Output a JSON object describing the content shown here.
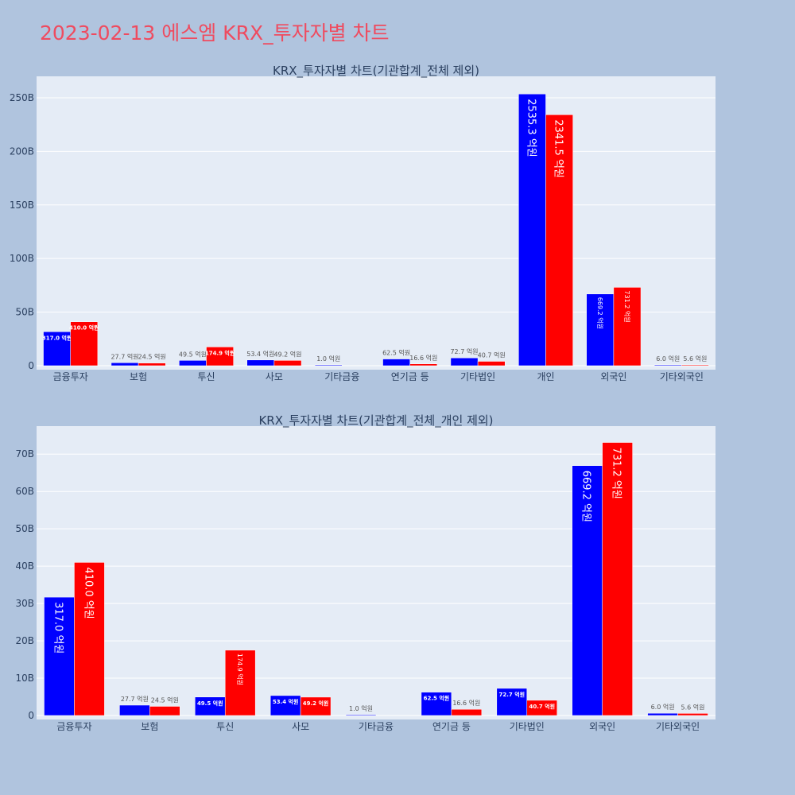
{
  "page": {
    "title": "2023-02-13 에스엠 KRX_투자자별 차트",
    "background": "#b0c4de",
    "title_color": "#ef4b5f",
    "plot_background": "#e5ecf6"
  },
  "chart_data": [
    {
      "type": "bar",
      "title": "KRX_투자자별 차트(기관합계_전체 제외)",
      "categories": [
        "금융투자",
        "보험",
        "투신",
        "사모",
        "기타금융",
        "연기금 등",
        "기타법인",
        "개인",
        "외국인",
        "기타외국인"
      ],
      "series": [
        {
          "color": "#0000ff",
          "values": [
            31.7,
            2.77,
            4.95,
            5.34,
            0.1,
            6.25,
            7.27,
            253.53,
            66.92,
            0.6
          ],
          "labels": [
            "317.0 억원",
            "27.7 억원",
            "49.5 억원",
            "53.4 억원",
            "1.0 억원",
            "62.5 억원",
            "72.7 억원",
            "2535.3 억원",
            "669.2 억원",
            "6.0 억원"
          ]
        },
        {
          "color": "#ff0000",
          "values": [
            41.0,
            2.45,
            17.49,
            4.92,
            0,
            1.66,
            4.07,
            234.15,
            73.12,
            0.56
          ],
          "labels": [
            "410.0 억원",
            "24.5 억원",
            "174.9 억원",
            "49.2 억원",
            "",
            "16.6 억원",
            "40.7 억원",
            "2341.5 억원",
            "731.2 억원",
            "5.6 억원"
          ]
        }
      ],
      "yticks": [
        0,
        50,
        100,
        150,
        200,
        250
      ],
      "ytick_labels": [
        "0",
        "50B",
        "100B",
        "150B",
        "200B",
        "250B"
      ],
      "ylim": [
        0,
        270
      ],
      "grid": true,
      "legend": "none"
    },
    {
      "type": "bar",
      "title": "KRX_투자자별 차트(기관합계_전체_개인 제외)",
      "categories": [
        "금융투자",
        "보험",
        "투신",
        "사모",
        "기타금융",
        "연기금 등",
        "기타법인",
        "외국인",
        "기타외국인"
      ],
      "series": [
        {
          "color": "#0000ff",
          "values": [
            31.7,
            2.77,
            4.95,
            5.34,
            0.1,
            6.25,
            7.27,
            66.92,
            0.6
          ],
          "labels": [
            "317.0 억원",
            "27.7 억원",
            "49.5 억원",
            "53.4 억원",
            "1.0 억원",
            "62.5 억원",
            "72.7 억원",
            "669.2 억원",
            "6.0 억원"
          ]
        },
        {
          "color": "#ff0000",
          "values": [
            41.0,
            2.45,
            17.49,
            4.92,
            0,
            1.66,
            4.07,
            73.12,
            0.56
          ],
          "labels": [
            "410.0 억원",
            "24.5 억원",
            "174.9 억원",
            "49.2 억원",
            "",
            "16.6 억원",
            "40.7 억원",
            "731.2 억원",
            "5.6 억원"
          ]
        }
      ],
      "yticks": [
        0,
        10,
        20,
        30,
        40,
        50,
        60,
        70
      ],
      "ytick_labels": [
        "0",
        "10B",
        "20B",
        "30B",
        "40B",
        "50B",
        "60B",
        "70B"
      ],
      "ylim": [
        0,
        77.5
      ],
      "grid": true,
      "legend": "none"
    }
  ]
}
